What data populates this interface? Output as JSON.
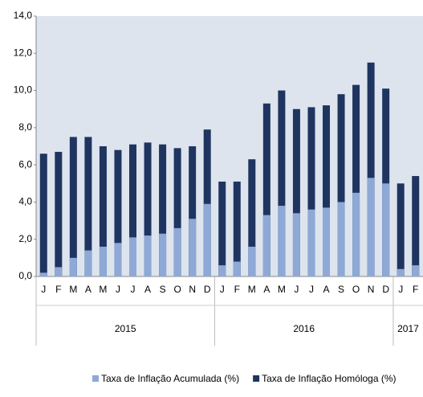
{
  "chart_data": {
    "type": "bar",
    "categories": [
      "J",
      "F",
      "M",
      "A",
      "M",
      "J",
      "J",
      "A",
      "S",
      "O",
      "N",
      "D",
      "J",
      "F",
      "M",
      "A",
      "M",
      "J",
      "J",
      "A",
      "S",
      "O",
      "N",
      "D",
      "J",
      "F"
    ],
    "groups": [
      {
        "label": "2015",
        "count": 12
      },
      {
        "label": "2016",
        "count": 12
      },
      {
        "label": "2017",
        "count": 2
      }
    ],
    "series": [
      {
        "name": "Taxa de Inflação Homóloga (%)",
        "color": "#1f3560",
        "values": [
          6.6,
          6.7,
          7.5,
          7.5,
          7.0,
          6.8,
          7.1,
          7.2,
          7.1,
          6.9,
          7.0,
          7.9,
          5.1,
          5.1,
          6.3,
          9.3,
          10.0,
          9.0,
          9.1,
          9.2,
          9.8,
          10.3,
          11.5,
          10.1,
          5.0,
          5.4
        ]
      },
      {
        "name": "Taxa de Inflação Acumulada (%)",
        "color": "#8ea9d6",
        "values": [
          0.2,
          0.5,
          1.0,
          1.4,
          1.6,
          1.8,
          2.1,
          2.2,
          2.3,
          2.6,
          3.1,
          3.9,
          0.6,
          0.8,
          1.6,
          3.3,
          3.8,
          3.4,
          3.6,
          3.7,
          4.0,
          4.5,
          5.3,
          5.0,
          0.4,
          0.6
        ]
      }
    ],
    "ylim": [
      0,
      14
    ],
    "yticks": [
      {
        "value": 0,
        "label": "0,0"
      },
      {
        "value": 2,
        "label": "2,0"
      },
      {
        "value": 4,
        "label": "4,0"
      },
      {
        "value": 6,
        "label": "6,0"
      },
      {
        "value": 8,
        "label": "8,0"
      },
      {
        "value": 10,
        "label": "10,0"
      },
      {
        "value": 12,
        "label": "12,0"
      },
      {
        "value": 14,
        "label": "14,0"
      }
    ],
    "grid": false
  }
}
